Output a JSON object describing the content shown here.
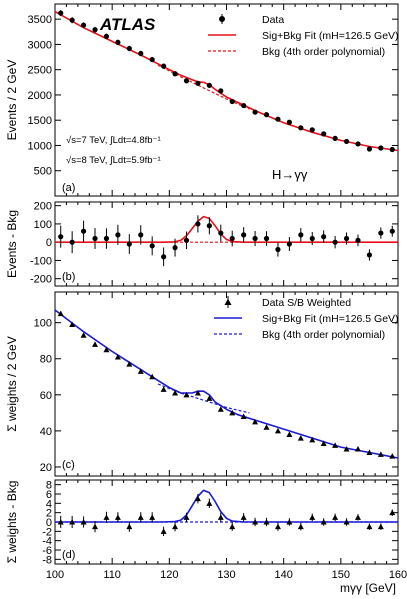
{
  "chart_data": [
    {
      "type": "scatter",
      "panel_label": "(a)",
      "ylabel": "Events / 2 GeV",
      "ylim": [
        0,
        3800
      ],
      "yticks": [
        500,
        1000,
        1500,
        2000,
        2500,
        3000,
        3500
      ],
      "xlim": [
        100,
        160
      ],
      "experiment": "ATLAS",
      "lumi_7": "√s=7 TeV, ∫Ldt=4.8fb⁻¹",
      "lumi_8": "√s=8 TeV, ∫Ldt=5.9fb⁻¹",
      "channel": "H→γγ",
      "legend": [
        {
          "label": "Data",
          "style": "point",
          "color": "#000000"
        },
        {
          "label": "Sig+Bkg Fit (mH=126.5 GeV)",
          "style": "solid",
          "color": "#e8101a"
        },
        {
          "label": "Bkg (4th order polynomial)",
          "style": "dashed",
          "color": "#e8101a"
        }
      ],
      "x": [
        101,
        103,
        105,
        107,
        109,
        111,
        113,
        115,
        117,
        119,
        121,
        123,
        125,
        127,
        129,
        131,
        133,
        135,
        137,
        139,
        141,
        143,
        145,
        147,
        149,
        151,
        153,
        155,
        157,
        159
      ],
      "data": [
        3620,
        3480,
        3380,
        3290,
        3160,
        3040,
        2920,
        2820,
        2700,
        2570,
        2420,
        2280,
        2230,
        2190,
        2080,
        1870,
        1790,
        1660,
        1610,
        1520,
        1460,
        1350,
        1310,
        1230,
        1140,
        1080,
        1030,
        930,
        950,
        920
      ],
      "data_err": [
        60,
        60,
        58,
        57,
        56,
        55,
        54,
        53,
        52,
        51,
        49,
        48,
        47,
        47,
        46,
        43,
        42,
        41,
        40,
        39,
        38,
        37,
        36,
        35,
        34,
        33,
        32,
        31,
        31,
        30
      ],
      "series": [
        {
          "name": "Sig+Bkg Fit",
          "color": "#e8101a",
          "dashed": false,
          "x": [
            100,
            105,
            110,
            115,
            120,
            122,
            124,
            125,
            126,
            127,
            128,
            130,
            135,
            140,
            145,
            150,
            155,
            160
          ],
          "y": [
            3650,
            3330,
            3060,
            2790,
            2500,
            2390,
            2300,
            2260,
            2250,
            2200,
            2110,
            1960,
            1690,
            1450,
            1260,
            1100,
            980,
            900
          ]
        },
        {
          "name": "Bkg",
          "color": "#e8101a",
          "dashed": true,
          "x": [
            118,
            122,
            126,
            130,
            134
          ],
          "y": [
            2590,
            2360,
            2140,
            1920,
            1720
          ]
        }
      ]
    },
    {
      "type": "scatter",
      "panel_label": "(b)",
      "ylabel": "Events - Bkg",
      "ylim": [
        -240,
        220
      ],
      "yticks": [
        -200,
        -100,
        0,
        100,
        200
      ],
      "xlim": [
        100,
        160
      ],
      "x": [
        101,
        103,
        105,
        107,
        109,
        111,
        113,
        115,
        117,
        119,
        121,
        123,
        125,
        127,
        129,
        131,
        133,
        135,
        137,
        139,
        141,
        143,
        145,
        147,
        149,
        151,
        153,
        155,
        157,
        159
      ],
      "data": [
        30,
        0,
        60,
        20,
        20,
        40,
        -10,
        40,
        -20,
        -80,
        -30,
        10,
        100,
        90,
        50,
        20,
        40,
        20,
        20,
        -40,
        -10,
        40,
        20,
        30,
        0,
        20,
        10,
        -70,
        50,
        60
      ],
      "data_err": [
        60,
        60,
        58,
        57,
        56,
        55,
        54,
        53,
        52,
        51,
        49,
        48,
        47,
        47,
        46,
        43,
        42,
        41,
        40,
        39,
        38,
        37,
        36,
        35,
        34,
        33,
        32,
        31,
        31,
        30
      ],
      "series": [
        {
          "name": "Sig+Bkg Fit",
          "color": "#e8101a",
          "dashed": false,
          "x": [
            100,
            119,
            121,
            122,
            123,
            124,
            125,
            126,
            127,
            128,
            129,
            130,
            131,
            133,
            160
          ],
          "y": [
            0,
            0,
            2,
            10,
            35,
            75,
            115,
            140,
            130,
            90,
            45,
            15,
            3,
            0,
            0
          ]
        },
        {
          "name": "Bkg",
          "color": "#e8101a",
          "dashed": true,
          "x": [
            100,
            160
          ],
          "y": [
            0,
            0
          ]
        }
      ]
    },
    {
      "type": "scatter",
      "panel_label": "(c)",
      "ylabel": "Σ weights / 2 GeV",
      "ylim": [
        15,
        117
      ],
      "yticks": [
        20,
        40,
        60,
        80,
        100
      ],
      "xlim": [
        100,
        160
      ],
      "legend": [
        {
          "label": "Data S/B Weighted",
          "style": "point",
          "color": "#000000"
        },
        {
          "label": "Sig+Bkg Fit (mH=126.5 GeV)",
          "style": "solid",
          "color": "#1a1ad6"
        },
        {
          "label": "Bkg (4th order polynomial)",
          "style": "dashed",
          "color": "#1a1ad6"
        }
      ],
      "x": [
        101,
        103,
        105,
        107,
        109,
        111,
        113,
        115,
        117,
        119,
        121,
        123,
        125,
        127,
        129,
        131,
        133,
        135,
        137,
        139,
        141,
        143,
        145,
        147,
        149,
        151,
        153,
        155,
        157,
        159
      ],
      "data": [
        105,
        99,
        93,
        88,
        85,
        81,
        77,
        73,
        70,
        63,
        61,
        60,
        61,
        58,
        52,
        50,
        48,
        45,
        42,
        40,
        38,
        36,
        35,
        33,
        32,
        30,
        30,
        28,
        27,
        26
      ],
      "data_err": [
        1.3,
        1.3,
        1.2,
        1.2,
        1.2,
        1.1,
        1.1,
        1.1,
        1.1,
        1.0,
        1.0,
        1.0,
        1.0,
        1.0,
        1.0,
        0.9,
        0.9,
        0.9,
        0.9,
        0.9,
        0.8,
        0.8,
        0.8,
        0.8,
        0.8,
        0.8,
        0.7,
        0.7,
        0.7,
        0.7
      ],
      "series": [
        {
          "name": "Sig+Bkg Fit",
          "color": "#1a1ad6",
          "dashed": false,
          "x": [
            100,
            105,
            110,
            115,
            118,
            120,
            122,
            124,
            125,
            126,
            127,
            128,
            129,
            130,
            132,
            135,
            140,
            145,
            150,
            155,
            160
          ],
          "y": [
            107,
            95,
            84,
            74,
            68,
            64,
            61,
            61,
            62,
            62,
            60,
            56,
            54,
            52,
            49,
            46,
            41,
            36,
            31,
            28,
            25
          ]
        },
        {
          "name": "Bkg",
          "color": "#1a1ad6",
          "dashed": true,
          "x": [
            118,
            122,
            126,
            130,
            134
          ],
          "y": [
            66,
            61,
            57,
            53,
            50
          ]
        }
      ]
    },
    {
      "type": "scatter",
      "panel_label": "(d)",
      "ylabel": "Σ weights - Bkg",
      "ylim": [
        -9,
        9
      ],
      "yticks": [
        -8,
        -6,
        -4,
        -2,
        0,
        2,
        4,
        6,
        8
      ],
      "xlim": [
        100,
        160
      ],
      "xlabel": "mγγ [GeV]",
      "xticks": [
        100,
        110,
        120,
        130,
        140,
        150,
        160
      ],
      "x": [
        101,
        103,
        105,
        107,
        109,
        111,
        113,
        115,
        117,
        119,
        121,
        123,
        125,
        127,
        129,
        131,
        133,
        135,
        137,
        139,
        141,
        143,
        145,
        147,
        149,
        151,
        153,
        155,
        157,
        159
      ],
      "data": [
        0,
        0,
        0,
        -1,
        1,
        1,
        -1,
        1,
        1,
        -2,
        -1,
        1,
        5,
        4,
        1,
        -1,
        1,
        0,
        0,
        -1,
        0,
        -1,
        1,
        0,
        1,
        0,
        1,
        -1,
        -1,
        2
      ],
      "data_err": [
        1.3,
        1.3,
        1.2,
        1.2,
        1.2,
        1.1,
        1.1,
        1.1,
        1.1,
        1.0,
        1.0,
        1.0,
        1.0,
        1.0,
        1.0,
        0.9,
        0.9,
        0.9,
        0.9,
        0.9,
        0.8,
        0.8,
        0.8,
        0.8,
        0.8,
        0.8,
        0.7,
        0.7,
        0.7,
        0.7
      ],
      "series": [
        {
          "name": "Sig+Bkg Fit",
          "color": "#1a1ad6",
          "dashed": false,
          "x": [
            100,
            119,
            121,
            122,
            123,
            124,
            125,
            126,
            127,
            128,
            129,
            130,
            131,
            133,
            160
          ],
          "y": [
            0,
            0,
            0.1,
            0.4,
            1.5,
            3.5,
            5.5,
            6.8,
            6.3,
            4.4,
            2.2,
            0.8,
            0.2,
            0,
            0
          ]
        },
        {
          "name": "Bkg",
          "color": "#1a1ad6",
          "dashed": true,
          "x": [
            100,
            160
          ],
          "y": [
            0,
            0
          ]
        }
      ]
    }
  ]
}
